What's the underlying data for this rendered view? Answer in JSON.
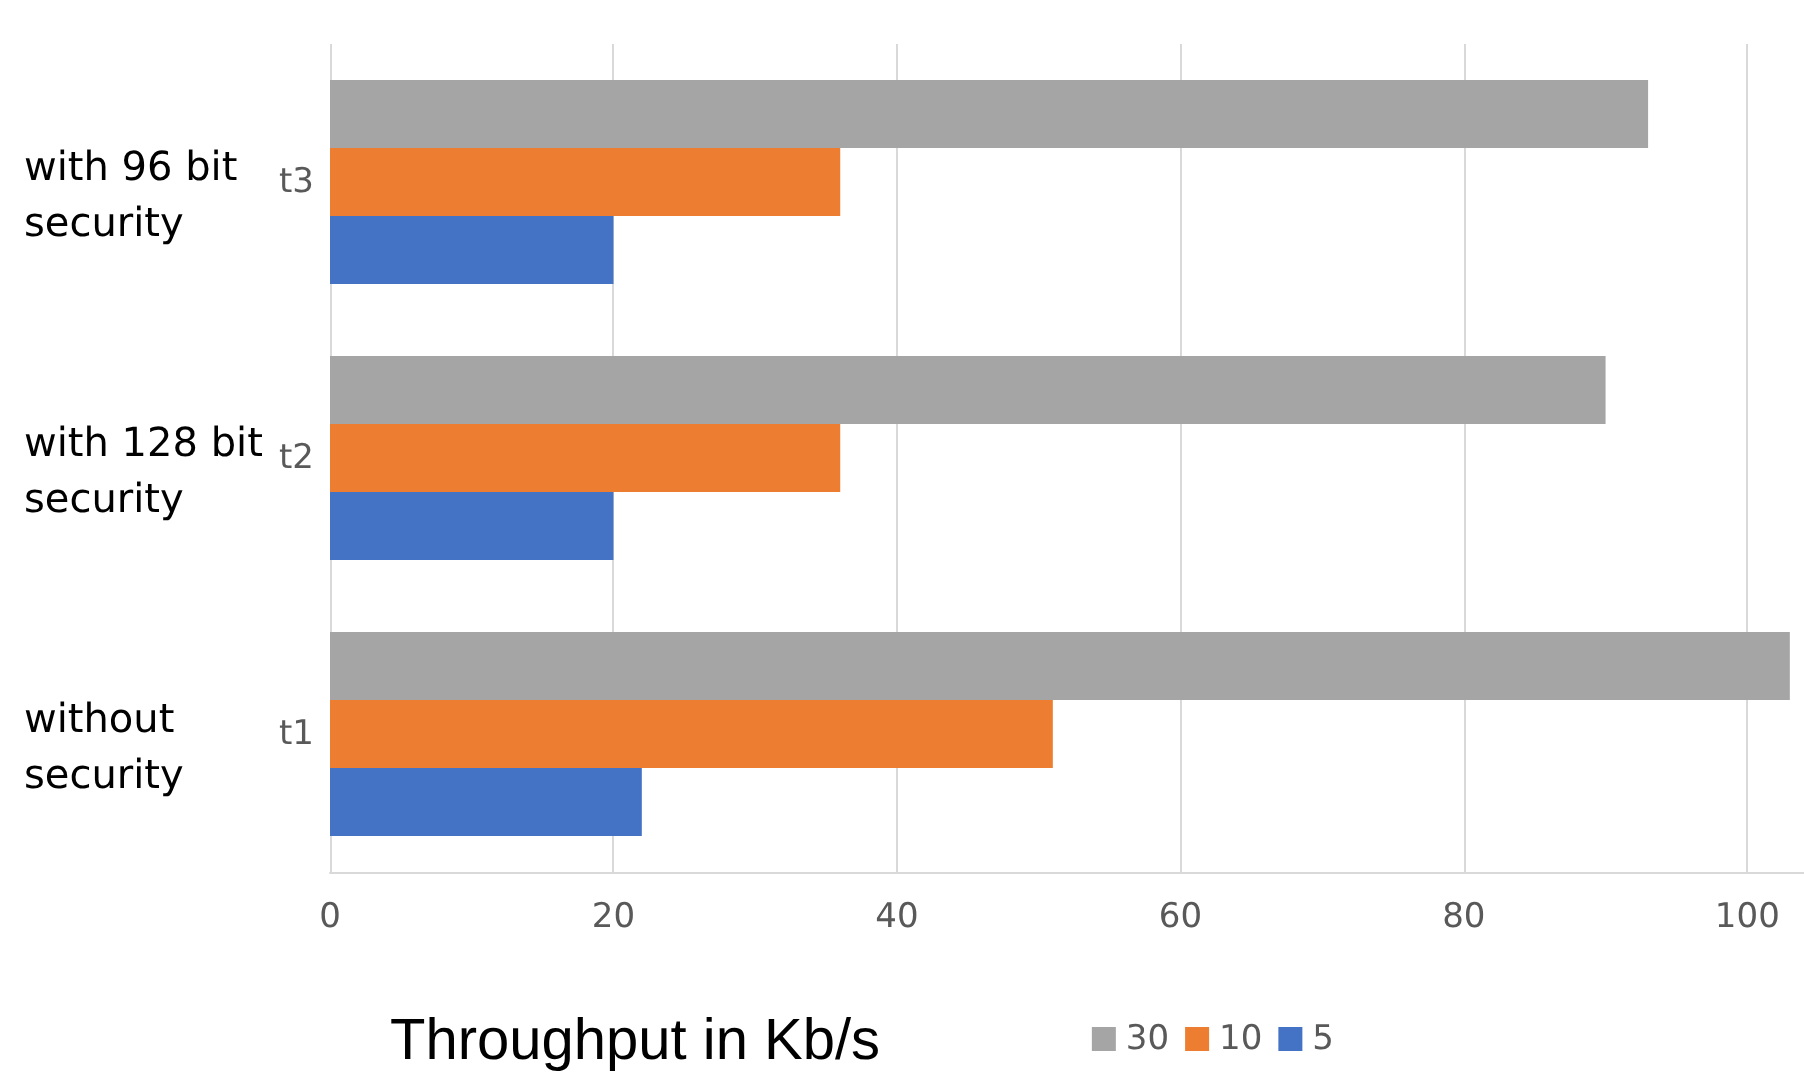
{
  "chart_data": {
    "type": "bar",
    "orientation": "horizontal",
    "xlabel": "Throughput in Kb/s",
    "categories": [
      "t3",
      "t2",
      "t1"
    ],
    "annotations": [
      "with 96 bit security",
      "with 128 bit security",
      "without security"
    ],
    "series": [
      {
        "name": "30",
        "color": "#a5a5a5",
        "values": [
          93,
          90,
          103
        ]
      },
      {
        "name": "10",
        "color": "#ed7d31",
        "values": [
          36,
          36,
          51
        ]
      },
      {
        "name": "5",
        "color": "#4472c4",
        "values": [
          20,
          20,
          22
        ]
      }
    ],
    "xlim": [
      0,
      104
    ],
    "xticks": [
      0,
      20,
      40,
      60,
      80,
      100
    ],
    "grid": "x",
    "legend": "bottom right"
  }
}
